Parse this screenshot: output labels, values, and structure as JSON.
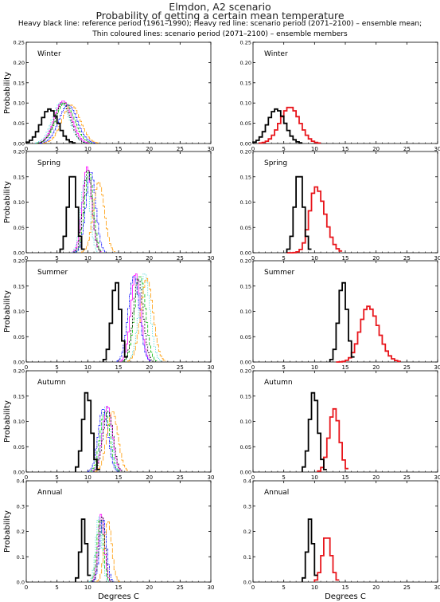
{
  "header": {
    "title_line1": "Elmdon, A2 scenario",
    "title_line2": "Probability of getting a certain mean temperature",
    "note_line1": "Heavy black line: reference period (1961–1990); Heavy red line: scenario period (2071–2100) – ensemble mean;",
    "note_line2": "Thin coloured lines: scenario period (2071–2100) – ensemble members"
  },
  "colors": {
    "reference": "#000000",
    "ensemble_mean": "#e8151b",
    "members": [
      "#ff00ff",
      "#00bb00",
      "#00cccc",
      "#0000ff",
      "#ff9900",
      "#000000"
    ]
  },
  "chart_data": [
    {
      "type": "line",
      "panel": "Winter",
      "column": "left",
      "xlabel": "",
      "ylabel": "Probability",
      "xlim": [
        0,
        30
      ],
      "ylim": [
        0,
        0.25
      ],
      "x_ticks": [
        0,
        5,
        10,
        15,
        20,
        25,
        30
      ],
      "y_ticks": [
        "0.00",
        "0.05",
        "0.10",
        "0.15",
        "0.20",
        "0.25"
      ],
      "reference": {
        "center": 3.8,
        "sd": 1.4,
        "peak": 0.085
      },
      "members": [
        {
          "center": 6.0,
          "sd": 1.4,
          "peak": 0.105
        },
        {
          "center": 6.3,
          "sd": 1.5,
          "peak": 0.1
        },
        {
          "center": 5.6,
          "sd": 1.4,
          "peak": 0.1
        },
        {
          "center": 6.8,
          "sd": 1.5,
          "peak": 0.095
        },
        {
          "center": 7.3,
          "sd": 1.5,
          "peak": 0.095
        },
        {
          "center": 5.9,
          "sd": 1.3,
          "peak": 0.1
        }
      ]
    },
    {
      "type": "line",
      "panel": "Winter",
      "column": "right",
      "xlabel": "",
      "ylabel": "",
      "xlim": [
        0,
        30
      ],
      "ylim": [
        0,
        0.25
      ],
      "x_ticks": [
        0,
        5,
        10,
        15,
        20,
        25,
        30
      ],
      "y_ticks": [
        "0.00",
        "0.05",
        "0.10",
        "0.15",
        "0.20",
        "0.25"
      ],
      "reference": {
        "center": 3.8,
        "sd": 1.4,
        "peak": 0.085
      },
      "mean": {
        "center": 6.0,
        "sd": 1.6,
        "peak": 0.09
      }
    },
    {
      "type": "line",
      "panel": "Spring",
      "column": "left",
      "xlabel": "",
      "ylabel": "Probability",
      "xlim": [
        0,
        30
      ],
      "ylim": [
        0,
        0.2
      ],
      "x_ticks": [
        0,
        5,
        10,
        15,
        20,
        25,
        30
      ],
      "y_ticks": [
        "0.00",
        "0.05",
        "0.10",
        "0.15",
        "0.20"
      ],
      "reference": {
        "center": 7.5,
        "sd": 0.7,
        "peak": 0.16
      },
      "members": [
        {
          "center": 9.9,
          "sd": 0.75,
          "peak": 0.17
        },
        {
          "center": 10.2,
          "sd": 0.7,
          "peak": 0.16
        },
        {
          "center": 9.6,
          "sd": 0.7,
          "peak": 0.15
        },
        {
          "center": 10.5,
          "sd": 0.8,
          "peak": 0.16
        },
        {
          "center": 11.8,
          "sd": 0.9,
          "peak": 0.14
        },
        {
          "center": 10.0,
          "sd": 0.7,
          "peak": 0.165
        }
      ]
    },
    {
      "type": "line",
      "panel": "Spring",
      "column": "right",
      "xlabel": "",
      "ylabel": "",
      "xlim": [
        0,
        30
      ],
      "ylim": [
        0,
        0.2
      ],
      "x_ticks": [
        0,
        5,
        10,
        15,
        20,
        25,
        30
      ],
      "y_ticks": [
        "0.00",
        "0.05",
        "0.10",
        "0.15",
        "0.20"
      ],
      "reference": {
        "center": 7.5,
        "sd": 0.7,
        "peak": 0.16
      },
      "mean": {
        "center": 10.2,
        "sd": 1.0,
        "skew": 1.5,
        "peak": 0.13
      }
    },
    {
      "type": "line",
      "panel": "Summer",
      "column": "left",
      "xlabel": "",
      "ylabel": "Probability",
      "xlim": [
        0,
        30
      ],
      "ylim": [
        0,
        0.2
      ],
      "x_ticks": [
        0,
        5,
        10,
        15,
        20,
        25,
        30
      ],
      "y_ticks": [
        "0.00",
        "0.05",
        "0.10",
        "0.15",
        "0.20"
      ],
      "reference": {
        "center": 14.6,
        "sd": 0.7,
        "peak": 0.16
      },
      "members": [
        {
          "center": 17.8,
          "sd": 0.8,
          "peak": 0.175
        },
        {
          "center": 18.5,
          "sd": 0.9,
          "peak": 0.17
        },
        {
          "center": 19.2,
          "sd": 0.9,
          "peak": 0.175
        },
        {
          "center": 17.5,
          "sd": 0.9,
          "peak": 0.17
        },
        {
          "center": 19.6,
          "sd": 1.0,
          "peak": 0.165
        },
        {
          "center": 18.2,
          "sd": 0.8,
          "peak": 0.165
        }
      ]
    },
    {
      "type": "line",
      "panel": "Summer",
      "column": "right",
      "xlabel": "",
      "ylabel": "",
      "xlim": [
        0,
        30
      ],
      "ylim": [
        0,
        0.2
      ],
      "x_ticks": [
        0,
        5,
        10,
        15,
        20,
        25,
        30
      ],
      "y_ticks": [
        "0.00",
        "0.05",
        "0.10",
        "0.15",
        "0.20"
      ],
      "reference": {
        "center": 14.6,
        "sd": 0.7,
        "peak": 0.16
      },
      "mean": {
        "center": 18.7,
        "sd": 1.3,
        "skew": 1.3,
        "peak": 0.11
      }
    },
    {
      "type": "line",
      "panel": "Autumn",
      "column": "left",
      "xlabel": "",
      "ylabel": "Probability",
      "xlim": [
        0,
        30
      ],
      "ylim": [
        0,
        0.2
      ],
      "x_ticks": [
        0,
        5,
        10,
        15,
        20,
        25,
        30
      ],
      "y_ticks": [
        "0.00",
        "0.05",
        "0.10",
        "0.15",
        "0.20"
      ],
      "reference": {
        "center": 9.9,
        "sd": 0.7,
        "peak": 0.16
      },
      "members": [
        {
          "center": 13.2,
          "sd": 0.8,
          "peak": 0.13
        },
        {
          "center": 12.8,
          "sd": 0.8,
          "peak": 0.12
        },
        {
          "center": 13.0,
          "sd": 0.75,
          "peak": 0.13
        },
        {
          "center": 12.5,
          "sd": 0.8,
          "peak": 0.125
        },
        {
          "center": 14.0,
          "sd": 0.9,
          "peak": 0.12
        },
        {
          "center": 13.3,
          "sd": 0.8,
          "peak": 0.12
        }
      ]
    },
    {
      "type": "line",
      "panel": "Autumn",
      "column": "right",
      "xlabel": "",
      "ylabel": "",
      "xlim": [
        0,
        30
      ],
      "ylim": [
        0,
        0.2
      ],
      "x_ticks": [
        0,
        5,
        10,
        15,
        20,
        25,
        30
      ],
      "y_ticks": [
        "0.00",
        "0.05",
        "0.10",
        "0.15",
        "0.20"
      ],
      "reference": {
        "center": 9.9,
        "sd": 0.7,
        "peak": 0.16
      },
      "mean": {
        "center": 13.2,
        "sd": 0.85,
        "peak": 0.125
      }
    },
    {
      "type": "line",
      "panel": "Annual",
      "column": "left",
      "xlabel": "Degrees C",
      "ylabel": "Probability",
      "xlim": [
        0,
        30
      ],
      "ylim": [
        0,
        0.4
      ],
      "x_ticks": [
        0,
        5,
        10,
        15,
        20,
        25,
        30
      ],
      "y_ticks": [
        "0.0",
        "0.1",
        "0.2",
        "0.3",
        "0.4"
      ],
      "reference": {
        "center": 9.3,
        "sd": 0.45,
        "peak": 0.25
      },
      "members": [
        {
          "center": 12.2,
          "sd": 0.5,
          "peak": 0.27
        },
        {
          "center": 12.0,
          "sd": 0.5,
          "peak": 0.25
        },
        {
          "center": 11.8,
          "sd": 0.5,
          "peak": 0.26
        },
        {
          "center": 12.5,
          "sd": 0.55,
          "peak": 0.25
        },
        {
          "center": 13.3,
          "sd": 0.6,
          "peak": 0.24
        },
        {
          "center": 12.3,
          "sd": 0.5,
          "peak": 0.26
        }
      ]
    },
    {
      "type": "line",
      "panel": "Annual",
      "column": "right",
      "xlabel": "Degrees C",
      "ylabel": "",
      "xlim": [
        0,
        30
      ],
      "ylim": [
        0,
        0.4
      ],
      "x_ticks": [
        0,
        5,
        10,
        15,
        20,
        25,
        30
      ],
      "y_ticks": [
        "0.0",
        "0.1",
        "0.2",
        "0.3",
        "0.4"
      ],
      "reference": {
        "center": 9.3,
        "sd": 0.45,
        "peak": 0.25
      },
      "mean": {
        "center": 12.0,
        "sd": 0.7,
        "skew": 1.0,
        "peak": 0.185
      }
    }
  ]
}
